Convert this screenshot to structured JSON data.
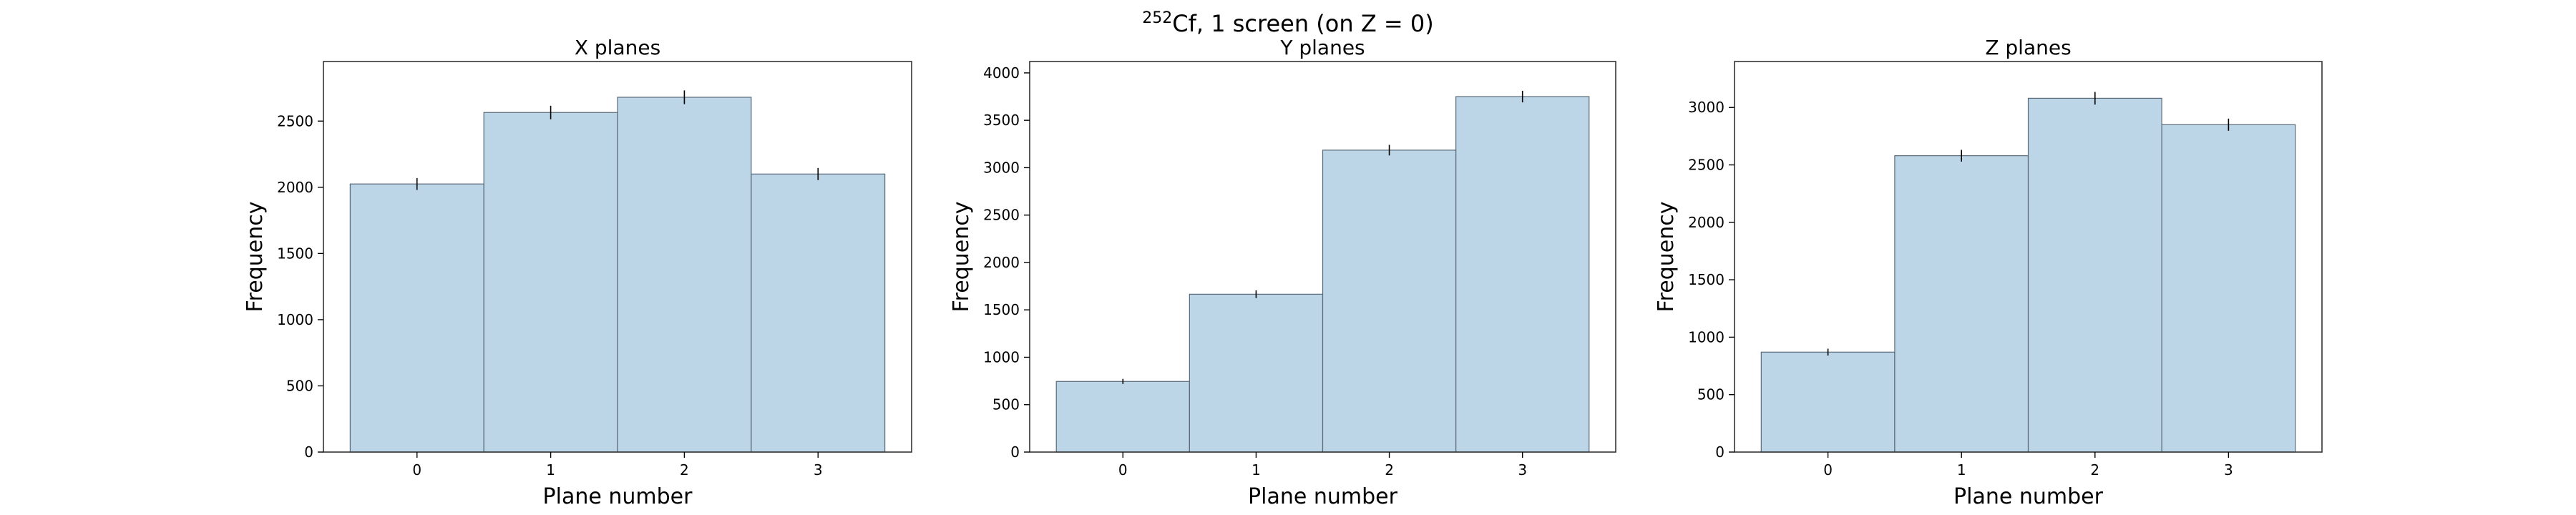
{
  "figure": {
    "suptitle_sup": "252",
    "suptitle_main": "Cf, 1 screen (on Z = 0)"
  },
  "chart_data": [
    {
      "type": "bar",
      "title": "X planes",
      "xlabel": "Plane number",
      "ylabel": "Frequency",
      "categories": [
        "0",
        "1",
        "2",
        "3"
      ],
      "values": [
        2025,
        2565,
        2680,
        2100
      ],
      "errors": [
        45,
        51,
        52,
        46
      ],
      "ylim": [
        0,
        2950
      ],
      "yticks": [
        0,
        500,
        1000,
        1500,
        2000,
        2500
      ],
      "bar_color": "#a6c8e0",
      "grid": false
    },
    {
      "type": "bar",
      "title": "Y planes",
      "xlabel": "Plane number",
      "ylabel": "Frequency",
      "categories": [
        "0",
        "1",
        "2",
        "3"
      ],
      "values": [
        745,
        1665,
        3185,
        3750
      ],
      "errors": [
        27,
        41,
        56,
        61
      ],
      "ylim": [
        0,
        4120
      ],
      "yticks": [
        0,
        500,
        1000,
        1500,
        2000,
        2500,
        3000,
        3500,
        4000
      ],
      "bar_color": "#a6c8e0",
      "grid": false
    },
    {
      "type": "bar",
      "title": "Z planes",
      "xlabel": "Plane number",
      "ylabel": "Frequency",
      "categories": [
        "0",
        "1",
        "2",
        "3"
      ],
      "values": [
        870,
        2580,
        3080,
        2850
      ],
      "errors": [
        30,
        51,
        55,
        53
      ],
      "ylim": [
        0,
        3400
      ],
      "yticks": [
        0,
        500,
        1000,
        1500,
        2000,
        2500,
        3000
      ],
      "bar_color": "#a6c8e0",
      "grid": false
    }
  ]
}
